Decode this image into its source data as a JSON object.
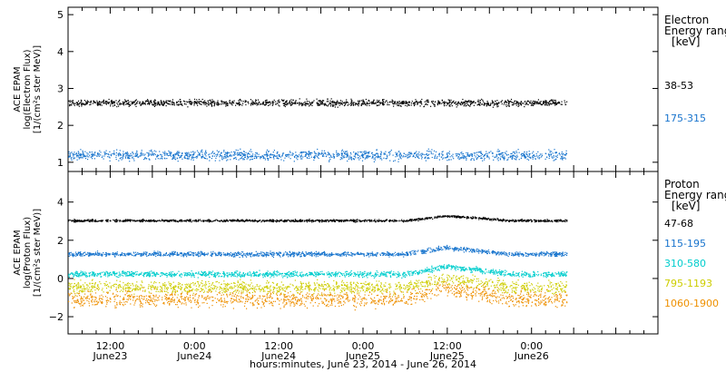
{
  "chart_data": {
    "type": "scatter",
    "x_axis": {
      "label": "hours:minutes, June 23, 2014 - June 26, 2014",
      "range_hours": [
        0,
        84
      ],
      "ticks": [
        {
          "hours": 6,
          "time": "12:00",
          "date": "June23"
        },
        {
          "hours": 18,
          "time": "0:00",
          "date": "June24"
        },
        {
          "hours": 30,
          "time": "12:00",
          "date": "June24"
        },
        {
          "hours": 42,
          "time": "0:00",
          "date": "June25"
        },
        {
          "hours": 54,
          "time": "12:00",
          "date": "June25"
        },
        {
          "hours": 66,
          "time": "0:00",
          "date": "June26"
        }
      ]
    },
    "panels": [
      {
        "id": "electron",
        "ylabel_lines": [
          "ACE EPAM",
          "log(Electron Flux)",
          "[1/(cm²s ster MeV)]"
        ],
        "ylim": [
          0.75,
          5.2
        ],
        "yticks": [
          1,
          2,
          3,
          4,
          5
        ],
        "legend_title": [
          "Electron",
          "Energy ranges",
          "[keV]"
        ],
        "series": [
          {
            "name": "38-53",
            "color": "#000000",
            "level": 2.62,
            "scatter": 0.06
          },
          {
            "name": "175-315",
            "color": "#1874cd",
            "level": 1.2,
            "scatter": 0.09
          }
        ]
      },
      {
        "id": "proton",
        "ylabel_lines": [
          "ACE EPAM",
          "log(Proton Flux)",
          "[1/(cm²s ster MeV)]"
        ],
        "ylim": [
          -2.9,
          5.6
        ],
        "yticks": [
          -2,
          0,
          2,
          4
        ],
        "legend_title": [
          "Proton",
          "Energy ranges",
          "[keV]"
        ],
        "series": [
          {
            "name": "47-68",
            "color": "#000000",
            "level": 3.05,
            "scatter": 0.04
          },
          {
            "name": "115-195",
            "color": "#1874cd",
            "level": 1.3,
            "scatter": 0.08
          },
          {
            "name": "310-580",
            "color": "#00cdcd",
            "level": 0.25,
            "scatter": 0.1
          },
          {
            "name": "795-1193",
            "color": "#cdcd00",
            "level": -0.45,
            "scatter": 0.22
          },
          {
            "name": "1060-1900",
            "color": "#ee9000",
            "level": -1.05,
            "scatter": 0.28
          }
        ]
      }
    ],
    "data_extent_hours": [
      0,
      71
    ],
    "proton_enhancement": {
      "start_hours": 48,
      "peak_hours": 54,
      "end_hours": 63
    }
  }
}
